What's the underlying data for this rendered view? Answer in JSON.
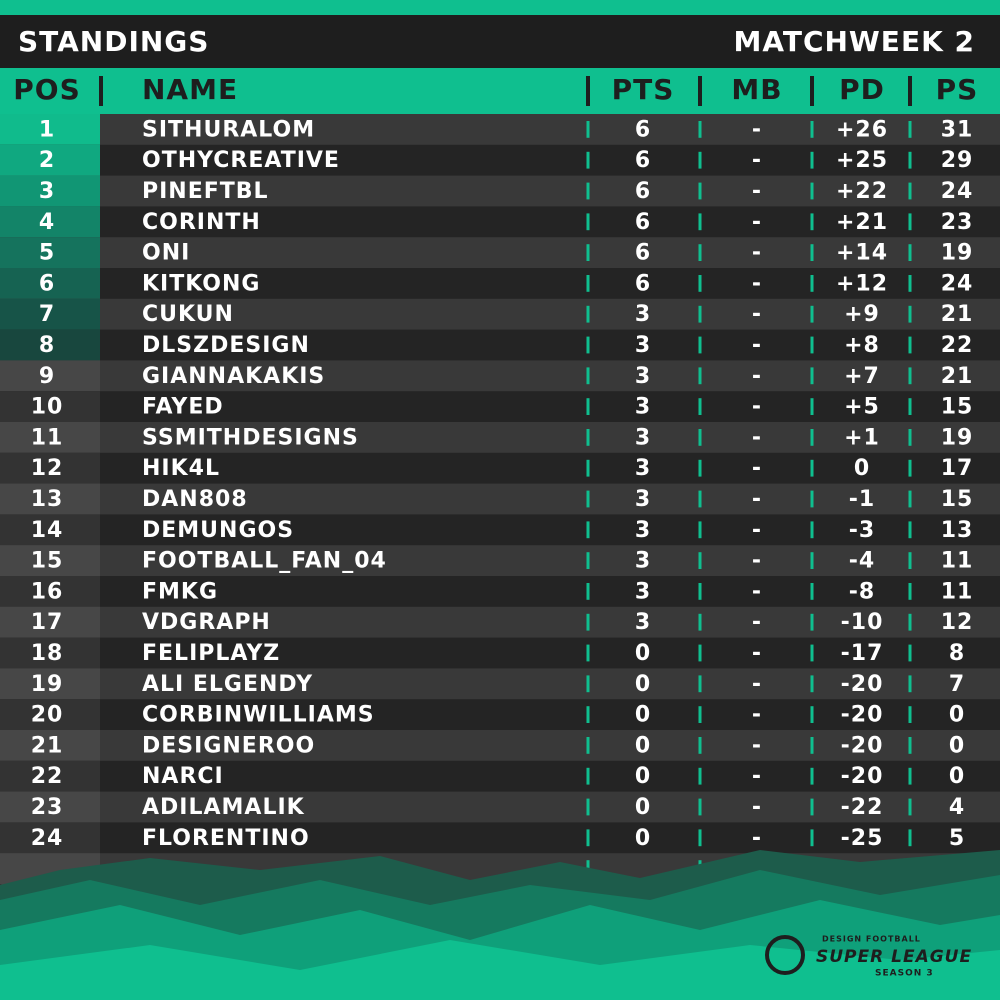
{
  "header": {
    "title": "STANDINGS",
    "matchweek": "MATCHWEEK 2"
  },
  "table": {
    "columns": [
      "POS",
      "NAME",
      "PTS",
      "MB",
      "PD",
      "PS"
    ],
    "rows": [
      [
        "1",
        "SITHURALOM",
        "6",
        "-",
        "+26",
        "31"
      ],
      [
        "2",
        "OTHYCREATIVE",
        "6",
        "-",
        "+25",
        "29"
      ],
      [
        "3",
        "PINEFTBL",
        "6",
        "-",
        "+22",
        "24"
      ],
      [
        "4",
        "CORINTH",
        "6",
        "-",
        "+21",
        "23"
      ],
      [
        "5",
        "ONI",
        "6",
        "-",
        "+14",
        "19"
      ],
      [
        "6",
        "KITKONG",
        "6",
        "-",
        "+12",
        "24"
      ],
      [
        "7",
        "CUKUN",
        "3",
        "-",
        "+9",
        "21"
      ],
      [
        "8",
        "DLSZDESIGN",
        "3",
        "-",
        "+8",
        "22"
      ],
      [
        "9",
        "GIANNAKAKIS",
        "3",
        "-",
        "+7",
        "21"
      ],
      [
        "10",
        "FAYED",
        "3",
        "-",
        "+5",
        "15"
      ],
      [
        "11",
        "SSMITHDESIGNS",
        "3",
        "-",
        "+1",
        "19"
      ],
      [
        "12",
        "HIK4L",
        "3",
        "-",
        "0",
        "17"
      ],
      [
        "13",
        "DAN808",
        "3",
        "-",
        "-1",
        "15"
      ],
      [
        "14",
        "DEMUNGOS",
        "3",
        "-",
        "-3",
        "13"
      ],
      [
        "15",
        "FOOTBALL_FAN_04",
        "3",
        "-",
        "-4",
        "11"
      ],
      [
        "16",
        "FMKG",
        "3",
        "-",
        "-8",
        "11"
      ],
      [
        "17",
        "VDGRAPH",
        "3",
        "-",
        "-10",
        "12"
      ],
      [
        "18",
        "FELIPLAYZ",
        "0",
        "-",
        "-17",
        "8"
      ],
      [
        "19",
        "ALI ELGENDY",
        "0",
        "-",
        "-20",
        "7"
      ],
      [
        "20",
        "CORBINWILLIAMS",
        "0",
        "-",
        "-20",
        "0"
      ],
      [
        "21",
        "DESIGNEROO",
        "0",
        "-",
        "-20",
        "0"
      ],
      [
        "22",
        "NARCI",
        "0",
        "-",
        "-20",
        "0"
      ],
      [
        "23",
        "ADILAMALIK",
        "0",
        "-",
        "-22",
        "4"
      ],
      [
        "24",
        "FLORENTINO",
        "0",
        "-",
        "-25",
        "5"
      ]
    ]
  },
  "logo": {
    "top": "DESIGN FOOTBALL",
    "main": "SUPER LEAGUE",
    "bottom": "SEASON 3"
  }
}
